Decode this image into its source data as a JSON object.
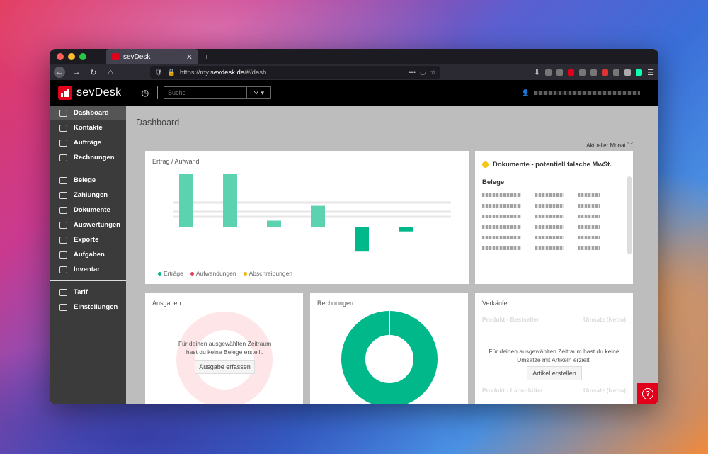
{
  "browser": {
    "tab_title": "sevDesk",
    "url_prefix": "https://my.",
    "url_domain": "sevdesk.de",
    "url_path": "/#/dash"
  },
  "app": {
    "brand": "sevDesk",
    "search_placeholder": "Suche"
  },
  "sidebar": {
    "items": [
      {
        "label": "Dashboard",
        "icon": "dashboard-icon",
        "active": true
      },
      {
        "label": "Kontakte",
        "icon": "contacts-icon"
      },
      {
        "label": "Aufträge",
        "icon": "folder-icon"
      },
      {
        "label": "Rechnungen",
        "icon": "invoice-icon"
      },
      {
        "label": "Belege",
        "icon": "receipt-icon"
      },
      {
        "label": "Zahlungen",
        "icon": "card-icon"
      },
      {
        "label": "Dokumente",
        "icon": "document-icon"
      },
      {
        "label": "Auswertungen",
        "icon": "report-icon"
      },
      {
        "label": "Exporte",
        "icon": "export-icon"
      },
      {
        "label": "Aufgaben",
        "icon": "check-icon"
      },
      {
        "label": "Inventar",
        "icon": "box-icon"
      },
      {
        "label": "Tarif",
        "icon": "bell-icon"
      },
      {
        "label": "Einstellungen",
        "icon": "gear-icon"
      }
    ]
  },
  "dashboard": {
    "title": "Dashboard",
    "period": "Aktueller Monat",
    "ertrag": {
      "title": "Ertrag / Aufwand",
      "legend": [
        "Erträge",
        "Aufwendungen",
        "Abschreibungen"
      ]
    },
    "documents": {
      "title": "Dokumente - potentiell falsche MwSt.",
      "subtitle": "Belege"
    },
    "ausgaben": {
      "title": "Ausgaben",
      "empty_msg": "Für deinen ausgewählten Zeitraum hast du keine Belege erstellt.",
      "button": "Ausgabe erfassen"
    },
    "rechnungen": {
      "title": "Rechnungen"
    },
    "verkaeufe": {
      "title": "Verkäufe",
      "col1": "Produkt - Bestseller",
      "col2": "Umsatz (Netto)",
      "col3": "Produkt - Ladenhüter",
      "col4": "Umsatz (Netto)",
      "empty_msg": "Für deinen ausgewählten Zeitraum hast du keine Umsätze mit Artikeln erzielt.",
      "button": "Artikel erstellen"
    }
  },
  "colors": {
    "accent": "#e2001a",
    "green": "#00b88a",
    "light_green": "#5dd2b1"
  },
  "chart_data": {
    "type": "bar",
    "categories": [
      "",
      "",
      "",
      "",
      "",
      ""
    ],
    "series": [
      {
        "name": "Erträge",
        "values": [
          4,
          4,
          0.5,
          1.6,
          -1.8,
          -0.3
        ]
      }
    ]
  }
}
